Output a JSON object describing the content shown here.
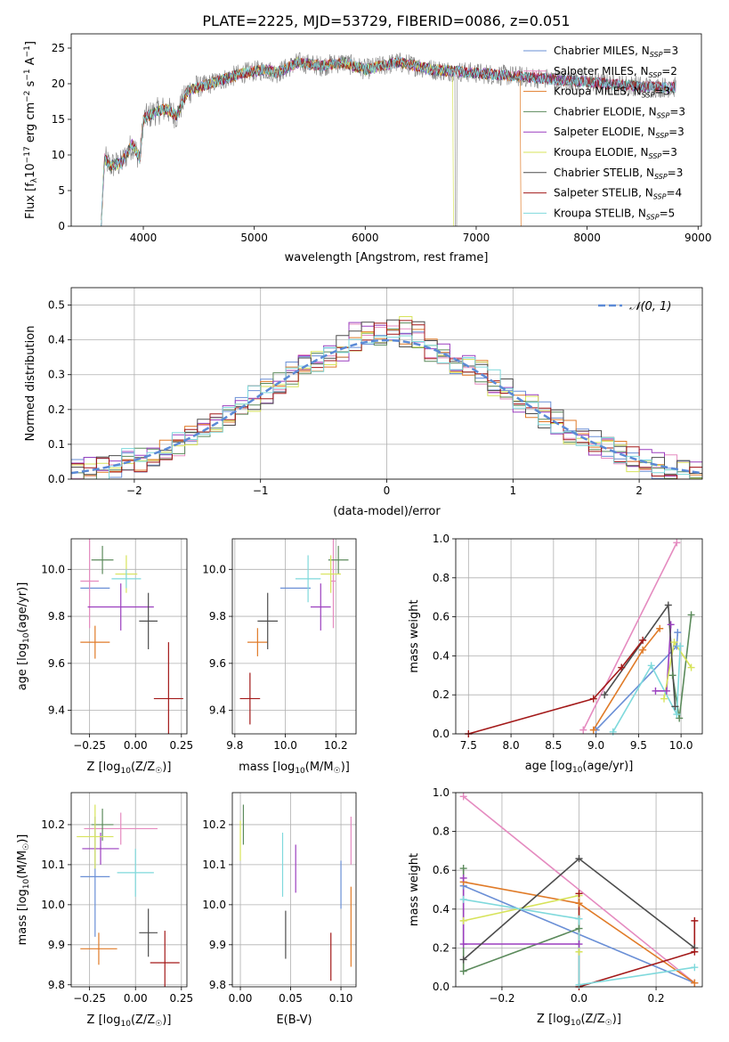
{
  "figure": {
    "title": "PLATE=2225, MJD=53729, FIBERID=0086, z=0.051"
  },
  "models": [
    {
      "name": "Chabrier MILES",
      "nssp": "3",
      "color": "#6a8fd6"
    },
    {
      "name": "Salpeter MILES",
      "nssp": "2",
      "color": "#e58bc0"
    },
    {
      "name": "Kroupa MILES",
      "nssp": "3",
      "color": "#e07b28"
    },
    {
      "name": "Chabrier ELODIE",
      "nssp": "3",
      "color": "#5b8a5b"
    },
    {
      "name": "Salpeter ELODIE",
      "nssp": "3",
      "color": "#9b3fbf"
    },
    {
      "name": "Kroupa ELODIE",
      "nssp": "3",
      "color": "#d7e35a"
    },
    {
      "name": "Chabrier STELIB",
      "nssp": "3",
      "color": "#4d4d4d"
    },
    {
      "name": "Salpeter STELIB",
      "nssp": "4",
      "color": "#a31919"
    },
    {
      "name": "Kroupa STELIB",
      "nssp": "5",
      "color": "#7fd9dc"
    }
  ],
  "chart_data": [
    {
      "id": "spectrum",
      "type": "line",
      "xlabel": "wavelength [Angstrom, rest frame]",
      "ylabel": "Flux [f",
      "ylabel_sub": "λ",
      "ylabel_rest": "10",
      "ylabel_exp": "−17",
      "ylabel_tail": " erg cm",
      "ylabel_exp2": "−2",
      "ylabel_tail2": " s",
      "ylabel_exp3": "−1",
      "ylabel_tail3": " A",
      "ylabel_exp4": "−1",
      "ylabel_end": "]",
      "xlim": [
        3350,
        9030
      ],
      "ylim": [
        0,
        27
      ],
      "xticks": [
        "4000",
        "5000",
        "6000",
        "7000",
        "8000",
        "9000"
      ],
      "xtick_values": [
        4000,
        5000,
        6000,
        7000,
        8000,
        9000
      ],
      "yticks": [
        "0",
        "5",
        "10",
        "15",
        "20",
        "25"
      ],
      "ytick_values": [
        0,
        5,
        10,
        15,
        20,
        25
      ],
      "continuum": [
        [
          3620,
          0.3
        ],
        [
          3650,
          9.5
        ],
        [
          3700,
          8.5
        ],
        [
          3800,
          8.8
        ],
        [
          3900,
          11.5
        ],
        [
          3970,
          9.5
        ],
        [
          4000,
          15
        ],
        [
          4100,
          16
        ],
        [
          4200,
          16.5
        ],
        [
          4300,
          15.5
        ],
        [
          4400,
          19
        ],
        [
          4500,
          19.5
        ],
        [
          4700,
          20.5
        ],
        [
          4900,
          21.5
        ],
        [
          5100,
          22
        ],
        [
          5200,
          21.5
        ],
        [
          5400,
          23
        ],
        [
          5600,
          22.5
        ],
        [
          5800,
          23
        ],
        [
          6000,
          22
        ],
        [
          6300,
          23
        ],
        [
          6600,
          22
        ],
        [
          7000,
          21.5
        ],
        [
          7400,
          21
        ],
        [
          7800,
          20.5
        ],
        [
          8200,
          20
        ],
        [
          8600,
          19.5
        ],
        [
          8800,
          19.5
        ]
      ],
      "dropouts": [
        {
          "x": 6790,
          "model": 5
        },
        {
          "x": 7400,
          "model": 2
        }
      ],
      "data_end": 6810,
      "model_end": 7420
    },
    {
      "id": "residuals",
      "type": "bar",
      "xlabel": "(data-model)/error",
      "ylabel": "Normed distribution",
      "xlim": [
        -2.5,
        2.5
      ],
      "ylim": [
        0,
        0.55
      ],
      "xticks": [
        "−2",
        "−1",
        "0",
        "1",
        "2"
      ],
      "xtick_values": [
        -2,
        -1,
        0,
        1,
        2
      ],
      "yticks": [
        "0.0",
        "0.1",
        "0.2",
        "0.3",
        "0.4",
        "0.5"
      ],
      "ytick_values": [
        0,
        0.1,
        0.2,
        0.3,
        0.4,
        0.5
      ],
      "bin_width": 0.1,
      "legend": "𝒩(0, 1)",
      "normal_color": "#5b8ad6"
    },
    {
      "id": "age-vs-z",
      "type": "scatter",
      "xlabel": "Z [log10(Z/Z☉)]",
      "xlabel_pre": "Z [log",
      "xlabel_sub": "10",
      "xlabel_post": "(Z/Z",
      "xlabel_sun": "☉",
      "xlabel_end": ")]",
      "ylabel_pre": "age  [log",
      "ylabel_sub": "10",
      "ylabel_post": "(age/yr)]",
      "xlim": [
        -0.35,
        0.28
      ],
      "ylim": [
        9.3,
        10.13
      ],
      "xticks": [
        "−0.25",
        "0.00",
        "0.25"
      ],
      "xtick_values": [
        -0.25,
        0,
        0.25
      ],
      "yticks": [
        "9.4",
        "9.6",
        "9.8",
        "10.0"
      ],
      "ytick_values": [
        9.4,
        9.6,
        9.8,
        10.0
      ],
      "points": [
        {
          "model": 0,
          "x": -0.22,
          "y": 9.92,
          "xerr": 0.08,
          "yerr": 0.0
        },
        {
          "model": 1,
          "x": -0.25,
          "y": 9.95,
          "xerr": 0.05,
          "yerr": 0.2
        },
        {
          "model": 2,
          "x": -0.22,
          "y": 9.69,
          "xerr": 0.08,
          "yerr": 0.07
        },
        {
          "model": 3,
          "x": -0.18,
          "y": 10.04,
          "xerr": 0.06,
          "yerr": 0.06
        },
        {
          "model": 4,
          "x": -0.08,
          "y": 9.84,
          "xerr": 0.18,
          "yerr": 0.1
        },
        {
          "model": 5,
          "x": -0.05,
          "y": 9.98,
          "xerr": 0.06,
          "yerr": 0.08
        },
        {
          "model": 6,
          "x": 0.07,
          "y": 9.78,
          "xerr": 0.05,
          "yerr": 0.12
        },
        {
          "model": 7,
          "x": 0.18,
          "y": 9.45,
          "xerr": 0.08,
          "yerr": 0.24
        },
        {
          "model": 8,
          "x": -0.05,
          "y": 9.96,
          "xerr": 0.08,
          "yerr": 0.04
        }
      ]
    },
    {
      "id": "age-vs-mass",
      "type": "scatter",
      "xlabel_pre": "mass [log",
      "xlabel_sub": "10",
      "xlabel_post": "(M/M",
      "xlabel_sun": "☉",
      "xlabel_end": ")]",
      "xlim": [
        9.79,
        10.28
      ],
      "ylim": [
        9.3,
        10.13
      ],
      "xticks": [
        "9.8",
        "10.0",
        "10.2"
      ],
      "xtick_values": [
        9.8,
        10.0,
        10.2
      ],
      "yticks": [
        "9.4",
        "9.6",
        "9.8",
        "10.0"
      ],
      "ytick_values": [
        9.4,
        9.6,
        9.8,
        10.0
      ],
      "points": [
        {
          "model": 0,
          "x": 10.04,
          "y": 9.92,
          "xerr": 0.06,
          "yerr": 0.0
        },
        {
          "model": 1,
          "x": 10.19,
          "y": 9.95,
          "xerr": 0.01,
          "yerr": 0.2
        },
        {
          "model": 2,
          "x": 9.89,
          "y": 9.69,
          "xerr": 0.04,
          "yerr": 0.06
        },
        {
          "model": 3,
          "x": 10.21,
          "y": 10.04,
          "xerr": 0.04,
          "yerr": 0.06
        },
        {
          "model": 4,
          "x": 10.14,
          "y": 9.84,
          "xerr": 0.04,
          "yerr": 0.1
        },
        {
          "model": 5,
          "x": 10.18,
          "y": 9.98,
          "xerr": 0.04,
          "yerr": 0.08
        },
        {
          "model": 6,
          "x": 9.93,
          "y": 9.78,
          "xerr": 0.04,
          "yerr": 0.12
        },
        {
          "model": 7,
          "x": 9.86,
          "y": 9.45,
          "xerr": 0.04,
          "yerr": 0.11
        },
        {
          "model": 8,
          "x": 10.09,
          "y": 9.96,
          "xerr": 0.05,
          "yerr": 0.1
        }
      ]
    },
    {
      "id": "mass-weight-vs-age",
      "type": "line",
      "xlabel_pre": "age  [log",
      "xlabel_sub": "10",
      "xlabel_post": "(age/yr)]",
      "ylabel": "mass weight",
      "xlim": [
        7.35,
        10.25
      ],
      "ylim": [
        0,
        1.0
      ],
      "xticks": [
        "7.5",
        "8.0",
        "8.5",
        "9.0",
        "9.5",
        "10.0"
      ],
      "xtick_values": [
        7.5,
        8.0,
        8.5,
        9.0,
        9.5,
        10.0
      ],
      "yticks": [
        "0.0",
        "0.2",
        "0.4",
        "0.6",
        "0.8",
        "1.0"
      ],
      "ytick_values": [
        0,
        0.2,
        0.4,
        0.6,
        0.8,
        1.0
      ],
      "series": [
        {
          "model": 0,
          "x": [
            9.0,
            9.95,
            9.96
          ],
          "y": [
            0.02,
            0.45,
            0.52
          ]
        },
        {
          "model": 1,
          "x": [
            8.85,
            9.95
          ],
          "y": [
            0.02,
            0.98
          ]
        },
        {
          "model": 2,
          "x": [
            8.97,
            9.55,
            9.75
          ],
          "y": [
            0.02,
            0.43,
            0.54
          ]
        },
        {
          "model": 3,
          "x": [
            9.9,
            9.98,
            10.12
          ],
          "y": [
            0.3,
            0.08,
            0.61
          ]
        },
        {
          "model": 4,
          "x": [
            9.7,
            9.83,
            9.88
          ],
          "y": [
            0.22,
            0.22,
            0.56
          ]
        },
        {
          "model": 5,
          "x": [
            9.8,
            9.92,
            10.12
          ],
          "y": [
            0.18,
            0.47,
            0.34
          ]
        },
        {
          "model": 6,
          "x": [
            9.1,
            9.85,
            9.93
          ],
          "y": [
            0.2,
            0.66,
            0.14
          ]
        },
        {
          "model": 7,
          "x": [
            7.5,
            8.97,
            9.3,
            9.55
          ],
          "y": [
            0.0,
            0.18,
            0.34,
            0.48
          ]
        },
        {
          "model": 8,
          "x": [
            9.2,
            9.65,
            9.95,
            9.99
          ],
          "y": [
            0.01,
            0.35,
            0.1,
            0.45
          ]
        }
      ]
    },
    {
      "id": "mass-vs-z",
      "type": "scatter",
      "xlabel_pre": "Z [log",
      "xlabel_sub": "10",
      "xlabel_post": "(Z/Z",
      "xlabel_sun": "☉",
      "xlabel_end": ")]",
      "ylabel_pre": "mass [log",
      "ylabel_sub": "10",
      "ylabel_post": "(M/M",
      "ylabel_sun": "☉",
      "ylabel_end": ")]",
      "xlim": [
        -0.35,
        0.28
      ],
      "ylim": [
        9.795,
        10.28
      ],
      "xticks": [
        "−0.25",
        "0.00",
        "0.25"
      ],
      "xtick_values": [
        -0.25,
        0,
        0.25
      ],
      "yticks": [
        "9.8",
        "9.9",
        "10.0",
        "10.1",
        "10.2"
      ],
      "ytick_values": [
        9.8,
        9.9,
        10.0,
        10.1,
        10.2
      ],
      "points": [
        {
          "model": 0,
          "x": -0.22,
          "y": 10.07,
          "xerr": 0.08,
          "yerr": 0.15
        },
        {
          "model": 1,
          "x": -0.08,
          "y": 10.19,
          "xerr": 0.2,
          "yerr": 0.04
        },
        {
          "model": 2,
          "x": -0.2,
          "y": 9.89,
          "xerr": 0.1,
          "yerr": 0.04
        },
        {
          "model": 3,
          "x": -0.18,
          "y": 10.2,
          "xerr": 0.06,
          "yerr": 0.04
        },
        {
          "model": 4,
          "x": -0.19,
          "y": 10.14,
          "xerr": 0.1,
          "yerr": 0.04
        },
        {
          "model": 5,
          "x": -0.22,
          "y": 10.17,
          "xerr": 0.1,
          "yerr": 0.08
        },
        {
          "model": 6,
          "x": 0.07,
          "y": 9.93,
          "xerr": 0.05,
          "yerr": 0.06
        },
        {
          "model": 7,
          "x": 0.16,
          "y": 9.855,
          "xerr": 0.08,
          "yerr": 0.08
        },
        {
          "model": 8,
          "x": 0.0,
          "y": 10.08,
          "xerr": 0.1,
          "yerr": 0.06
        }
      ]
    },
    {
      "id": "mass-vs-ebv",
      "type": "scatter",
      "xlabel": "E(B-V)",
      "xlim": [
        -0.008,
        0.115
      ],
      "ylim": [
        9.795,
        10.28
      ],
      "xticks": [
        "0.00",
        "0.05",
        "0.10"
      ],
      "xtick_values": [
        0,
        0.05,
        0.1
      ],
      "yticks": [
        "9.8",
        "9.9",
        "10.0",
        "10.1",
        "10.2"
      ],
      "ytick_values": [
        9.8,
        9.9,
        10.0,
        10.1,
        10.2
      ],
      "points": [
        {
          "model": 0,
          "x": 0.1,
          "y": 10.05,
          "xerr": 0.0,
          "yerr": 0.06
        },
        {
          "model": 1,
          "x": 0.11,
          "y": 10.16,
          "xerr": 0.0,
          "yerr": 0.06
        },
        {
          "model": 2,
          "x": 0.11,
          "y": 9.945,
          "xerr": 0.0,
          "yerr": 0.1
        },
        {
          "model": 3,
          "x": 0.003,
          "y": 10.2,
          "xerr": 0.0,
          "yerr": 0.05
        },
        {
          "model": 4,
          "x": 0.055,
          "y": 10.09,
          "xerr": 0.0,
          "yerr": 0.06
        },
        {
          "model": 5,
          "x": 0.0,
          "y": 10.16,
          "xerr": 0.0,
          "yerr": 0.05
        },
        {
          "model": 6,
          "x": 0.045,
          "y": 9.925,
          "xerr": 0.0,
          "yerr": 0.06
        },
        {
          "model": 7,
          "x": 0.09,
          "y": 9.87,
          "xerr": 0.0,
          "yerr": 0.06
        },
        {
          "model": 8,
          "x": 0.042,
          "y": 10.1,
          "xerr": 0.0,
          "yerr": 0.08
        }
      ]
    },
    {
      "id": "mass-weight-vs-z",
      "type": "line",
      "xlabel_pre": "Z [log",
      "xlabel_sub": "10",
      "xlabel_post": "(Z/Z",
      "xlabel_sun": "☉",
      "xlabel_end": ")]",
      "ylabel": "mass weight",
      "xlim": [
        -0.32,
        0.32
      ],
      "ylim": [
        0,
        1.0
      ],
      "xticks": [
        "−0.2",
        "0.0",
        "0.2"
      ],
      "xtick_values": [
        -0.2,
        0,
        0.2
      ],
      "yticks": [
        "0.0",
        "0.2",
        "0.4",
        "0.6",
        "0.8",
        "1.0"
      ],
      "ytick_values": [
        0,
        0.2,
        0.4,
        0.6,
        0.8,
        1.0
      ],
      "series": [
        {
          "model": 0,
          "x": [
            -0.3,
            0.3
          ],
          "y": [
            0.52,
            0.02
          ]
        },
        {
          "model": 1,
          "x": [
            -0.3,
            0.3
          ],
          "y": [
            0.98,
            0.02
          ]
        },
        {
          "model": 2,
          "x": [
            -0.3,
            0.0,
            0.3
          ],
          "y": [
            0.54,
            0.43,
            0.02
          ]
        },
        {
          "model": 3,
          "x": [
            -0.3,
            -0.3,
            0.0
          ],
          "y": [
            0.61,
            0.08,
            0.3
          ]
        },
        {
          "model": 4,
          "x": [
            -0.3,
            -0.3,
            0.0
          ],
          "y": [
            0.56,
            0.22,
            0.22
          ]
        },
        {
          "model": 5,
          "x": [
            -0.3,
            0.0,
            0.0
          ],
          "y": [
            0.34,
            0.47,
            0.18
          ]
        },
        {
          "model": 6,
          "x": [
            -0.3,
            0.0,
            0.3
          ],
          "y": [
            0.14,
            0.66,
            0.2
          ]
        },
        {
          "model": 7,
          "x": [
            0.0,
            0.0,
            0.3,
            0.3
          ],
          "y": [
            0.48,
            0.0,
            0.18,
            0.34
          ]
        },
        {
          "model": 8,
          "x": [
            -0.3,
            0.0,
            0.0,
            0.3
          ],
          "y": [
            0.45,
            0.35,
            0.01,
            0.1
          ]
        }
      ]
    }
  ]
}
